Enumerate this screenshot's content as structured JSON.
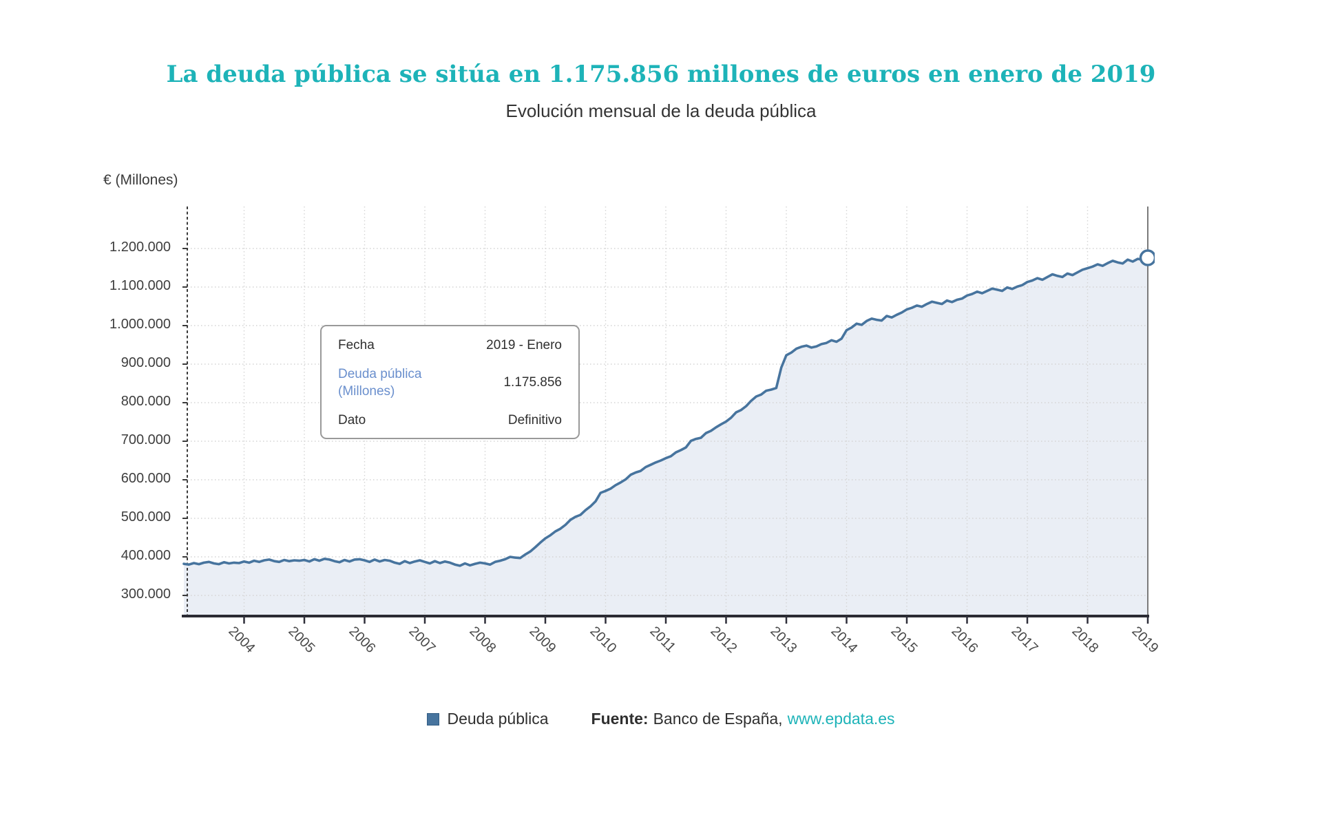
{
  "colors": {
    "accent_teal": "#1db3b8",
    "line_color": "#47749e",
    "area_fill": "#eaeef5"
  },
  "header": {
    "title": "La deuda pública se sitúa en 1.175.856 millones de euros en enero de 2019",
    "subtitle": "Evolución mensual de la deuda pública"
  },
  "tooltip": {
    "rows": [
      {
        "label": "Fecha",
        "value": "2019 - Enero"
      },
      {
        "label": "Deuda pública (Millones)",
        "value": "1.175.856"
      },
      {
        "label": "Dato",
        "value": "Definitivo"
      }
    ]
  },
  "legend": {
    "series_label": "Deuda pública"
  },
  "footer": {
    "fuente_label": "Fuente:",
    "fuente_text": "Banco de España,",
    "link": "www.epdata.es"
  },
  "chart_data": {
    "type": "area",
    "title": "Evolución mensual de la deuda pública",
    "ylabel": "€ (Millones)",
    "xlabel": "",
    "frequency": "monthly",
    "x_start": "2003-01",
    "x_end": "2019-01",
    "grid": true,
    "legend_position": "bottom",
    "ylim": [
      246000,
      1310000
    ],
    "y_ticks_values": [
      300000,
      400000,
      500000,
      600000,
      700000,
      800000,
      900000,
      1000000,
      1100000,
      1200000
    ],
    "y_tick_labels": [
      "300.000",
      "400.000",
      "500.000",
      "600.000",
      "700.000",
      "800.000",
      "900.000",
      "1.000.000",
      "1.100.000",
      "1.200.000"
    ],
    "x_ticks_years": [
      2004,
      2005,
      2006,
      2007,
      2008,
      2009,
      2010,
      2011,
      2012,
      2013,
      2014,
      2015,
      2016,
      2017,
      2018,
      2019
    ],
    "x_tick_labels": [
      "2004",
      "2005",
      "2006",
      "2007",
      "2008",
      "2009",
      "2010",
      "2011",
      "2012",
      "2013",
      "2014",
      "2015",
      "2016",
      "2017",
      "2018",
      "2019"
    ],
    "series_name": "Deuda pública",
    "last_point": {
      "fecha": "2019 - Enero",
      "valor": 1175856,
      "dato": "Definitivo"
    },
    "values_millones": [
      382000,
      380000,
      384000,
      381000,
      385000,
      387000,
      383000,
      381000,
      386000,
      383000,
      385000,
      384000,
      388000,
      385000,
      390000,
      387000,
      391000,
      393000,
      389000,
      387000,
      392000,
      389000,
      391000,
      390000,
      392000,
      388000,
      394000,
      390000,
      395000,
      393000,
      389000,
      386000,
      392000,
      388000,
      393000,
      394000,
      391000,
      387000,
      393000,
      388000,
      392000,
      390000,
      385000,
      382000,
      389000,
      384000,
      388000,
      391000,
      387000,
      383000,
      389000,
      384000,
      388000,
      385000,
      380000,
      377000,
      383000,
      378000,
      382000,
      385000,
      383000,
      380000,
      387000,
      390000,
      394000,
      400000,
      398000,
      397000,
      406000,
      414000,
      425000,
      437000,
      448000,
      456000,
      466000,
      473000,
      483000,
      496000,
      504000,
      509000,
      521000,
      531000,
      544000,
      566000,
      571000,
      577000,
      586000,
      593000,
      601000,
      613000,
      619000,
      623000,
      633000,
      639000,
      645000,
      650000,
      656000,
      661000,
      671000,
      677000,
      684000,
      701000,
      706000,
      709000,
      721000,
      727000,
      736000,
      744000,
      751000,
      761000,
      775000,
      781000,
      791000,
      805000,
      816000,
      821000,
      831000,
      834000,
      838000,
      891000,
      923000,
      930000,
      940000,
      945000,
      948000,
      943000,
      946000,
      952000,
      955000,
      962000,
      958000,
      966000,
      988000,
      995000,
      1005000,
      1002000,
      1012000,
      1018000,
      1015000,
      1013000,
      1025000,
      1021000,
      1028000,
      1034000,
      1042000,
      1046000,
      1052000,
      1049000,
      1056000,
      1062000,
      1059000,
      1056000,
      1065000,
      1061000,
      1067000,
      1070000,
      1078000,
      1082000,
      1088000,
      1084000,
      1090000,
      1096000,
      1093000,
      1090000,
      1099000,
      1095000,
      1101000,
      1105000,
      1113000,
      1117000,
      1123000,
      1119000,
      1126000,
      1133000,
      1129000,
      1126000,
      1135000,
      1131000,
      1138000,
      1145000,
      1149000,
      1153000,
      1159000,
      1155000,
      1162000,
      1168000,
      1164000,
      1161000,
      1171000,
      1166000,
      1173000,
      1171000,
      1175856
    ]
  }
}
